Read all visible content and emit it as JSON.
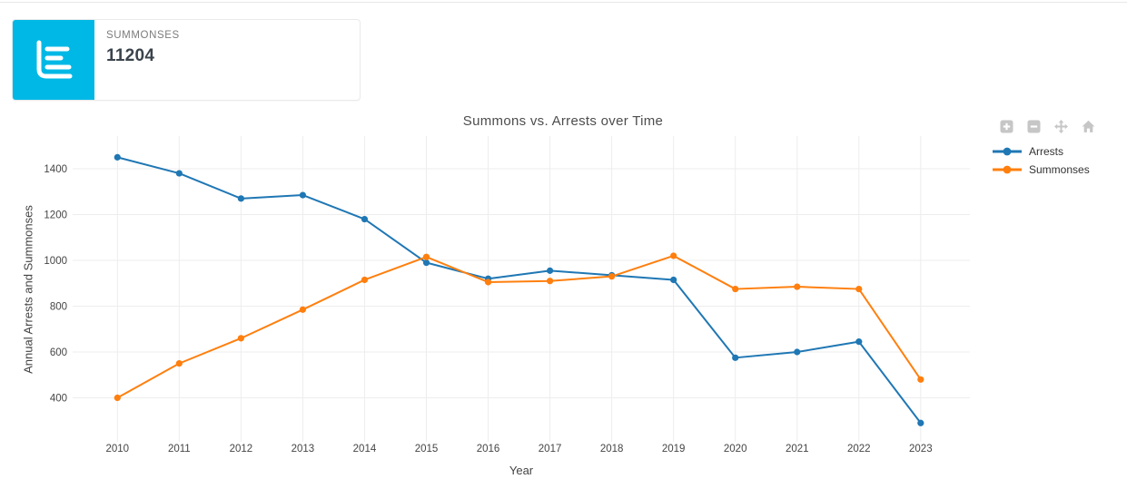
{
  "summary_card": {
    "label": "SUMMONSES",
    "value": "11204",
    "icon": "bar-chart-icon",
    "accent_color": "#00b8e6"
  },
  "toolbar": {
    "buttons": [
      {
        "name": "zoom-in",
        "icon": "zoom-in-plus-icon"
      },
      {
        "name": "zoom-out",
        "icon": "zoom-out-minus-icon"
      },
      {
        "name": "pan",
        "icon": "pan-move-icon"
      },
      {
        "name": "reset",
        "icon": "home-icon"
      }
    ]
  },
  "chart_data": {
    "type": "line",
    "title": "Summons vs. Arrests over Time",
    "xlabel": "Year",
    "ylabel": "Annual Arrests and Summonses",
    "categories": [
      "2010",
      "2011",
      "2012",
      "2013",
      "2014",
      "2015",
      "2016",
      "2017",
      "2018",
      "2019",
      "2020",
      "2021",
      "2022",
      "2023"
    ],
    "series": [
      {
        "name": "Arrests",
        "color": "#1f77b4",
        "values": [
          1450,
          1380,
          1270,
          1285,
          1180,
          990,
          920,
          955,
          935,
          915,
          575,
          600,
          645,
          290
        ]
      },
      {
        "name": "Summonses",
        "color": "#ff7f0e",
        "values": [
          400,
          550,
          660,
          785,
          915,
          1015,
          905,
          910,
          930,
          1020,
          875,
          885,
          875,
          480
        ]
      }
    ],
    "yticks": [
      400,
      600,
      800,
      1000,
      1200,
      1400
    ],
    "ylim": [
      200,
      1550
    ],
    "grid": true,
    "legend_position": "top-right-outside"
  },
  "colors": {
    "gridline": "#ededed",
    "tick_label": "#454545",
    "toolbar_icon": "#c6c6c6"
  }
}
